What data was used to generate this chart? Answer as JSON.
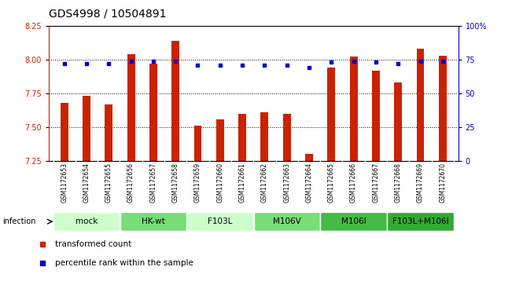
{
  "title": "GDS4998 / 10504891",
  "samples": [
    "GSM1172653",
    "GSM1172654",
    "GSM1172655",
    "GSM1172656",
    "GSM1172657",
    "GSM1172658",
    "GSM1172659",
    "GSM1172660",
    "GSM1172661",
    "GSM1172662",
    "GSM1172663",
    "GSM1172664",
    "GSM1172665",
    "GSM1172666",
    "GSM1172667",
    "GSM1172668",
    "GSM1172669",
    "GSM1172670"
  ],
  "bar_values": [
    7.68,
    7.73,
    7.67,
    8.04,
    7.97,
    8.14,
    7.51,
    7.56,
    7.6,
    7.61,
    7.6,
    7.3,
    7.94,
    8.02,
    7.92,
    7.83,
    8.08,
    8.03
  ],
  "percentile_values": [
    72,
    72,
    72,
    74,
    74,
    74,
    71,
    71,
    71,
    71,
    71,
    69,
    73,
    74,
    73,
    72,
    74,
    74
  ],
  "ylim_left": [
    7.25,
    8.25
  ],
  "ylim_right": [
    0,
    100
  ],
  "yticks_left": [
    7.25,
    7.5,
    7.75,
    8.0,
    8.25
  ],
  "yticks_right": [
    0,
    25,
    50,
    75,
    100
  ],
  "bar_color": "#cc2200",
  "dot_color": "#0000cc",
  "groups": [
    {
      "label": "mock",
      "start": 0,
      "end": 3,
      "color": "#ccffcc"
    },
    {
      "label": "HK-wt",
      "start": 3,
      "end": 6,
      "color": "#77dd77"
    },
    {
      "label": "F103L",
      "start": 6,
      "end": 9,
      "color": "#ccffcc"
    },
    {
      "label": "M106V",
      "start": 9,
      "end": 12,
      "color": "#77dd77"
    },
    {
      "label": "M106I",
      "start": 12,
      "end": 15,
      "color": "#44bb44"
    },
    {
      "label": "F103L+M106I",
      "start": 15,
      "end": 18,
      "color": "#33aa33"
    }
  ],
  "legend_items": [
    {
      "label": "transformed count",
      "color": "#cc2200"
    },
    {
      "label": "percentile rank within the sample",
      "color": "#0000cc"
    }
  ],
  "infection_label": "infection",
  "background_color": "#ffffff",
  "title_fontsize": 10,
  "tick_fontsize": 7,
  "bar_width": 0.35,
  "sample_label_fontsize": 5.5,
  "group_label_fontsize": 7.5
}
